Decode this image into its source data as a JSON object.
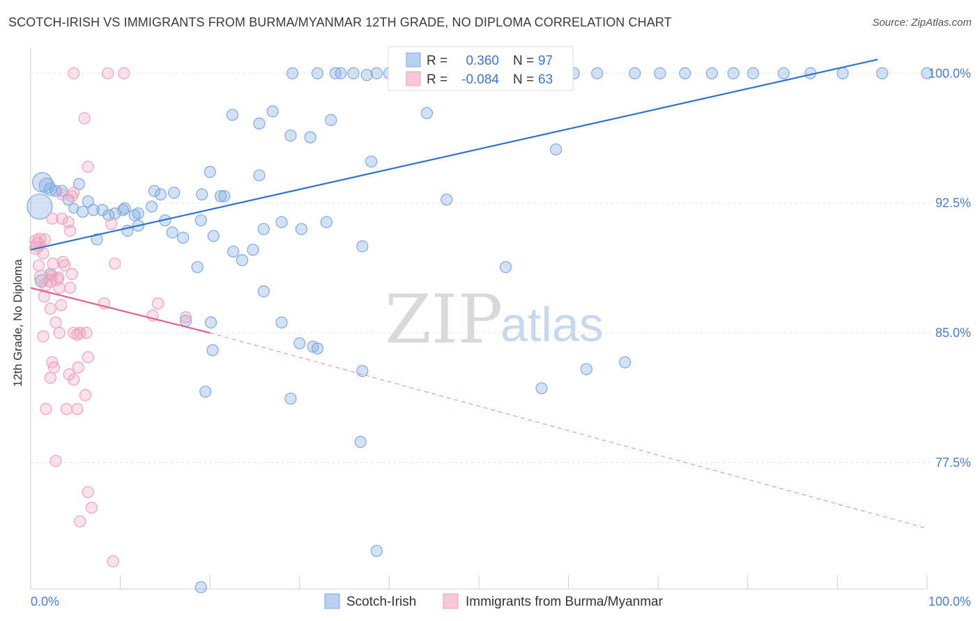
{
  "header": {
    "title": "SCOTCH-IRISH VS IMMIGRANTS FROM BURMA/MYANMAR 12TH GRADE, NO DIPLOMA CORRELATION CHART",
    "source": "Source: ZipAtlas.com"
  },
  "watermark": {
    "zip": "ZIP",
    "atlas": "atlas"
  },
  "colors": {
    "blue": "#7fa8e0",
    "blue_line": "#2f72cc",
    "pink": "#f0a0b8",
    "pink_line": "#e0628a",
    "grid": "#e2e2e2"
  },
  "chart_data": {
    "type": "scatter",
    "xlabel": "",
    "ylabel": "12th Grade, No Diploma",
    "xlim": [
      0,
      100
    ],
    "ylim": [
      70.2,
      101.5
    ],
    "x_tick_labels": [
      "0.0%",
      "100.0%"
    ],
    "y_ticks": [
      {
        "value": 77.5,
        "label": "77.5%"
      },
      {
        "value": 85.0,
        "label": "85.0%"
      },
      {
        "value": 92.5,
        "label": "92.5%"
      },
      {
        "value": 100.0,
        "label": "100.0%"
      }
    ],
    "grid": true,
    "legend_position": "bottom-center",
    "stats": {
      "r_label": "R =",
      "n_label": "N =",
      "rows": [
        {
          "series": "Scotch-Irish",
          "r": "0.360",
          "n": "97"
        },
        {
          "series": "Immigrants from Burma/Myanmar",
          "r": "-0.084",
          "n": "63"
        }
      ]
    },
    "series": [
      {
        "name": "Scotch-Irish",
        "color": "#7fa8e0",
        "trend": {
          "x": [
            0,
            94.5
          ],
          "y": [
            89.8,
            100.8
          ],
          "dashed_to": null
        },
        "points": [
          [
            1.3,
            93.7,
            14
          ],
          [
            1.0,
            92.3,
            18
          ],
          [
            1.8,
            93.5,
            11
          ],
          [
            2.2,
            93.3,
            9
          ],
          [
            2.8,
            93.2,
            8
          ],
          [
            3.5,
            93.2,
            8
          ],
          [
            4.2,
            92.7,
            8
          ],
          [
            5.4,
            93.6,
            8
          ],
          [
            6.4,
            92.6,
            8
          ],
          [
            4.8,
            92.2,
            7
          ],
          [
            5.8,
            92.0,
            8
          ],
          [
            7.0,
            92.1,
            8
          ],
          [
            8.0,
            92.1,
            8
          ],
          [
            8.7,
            91.8,
            8
          ],
          [
            9.4,
            91.9,
            8
          ],
          [
            10.3,
            92.1,
            8
          ],
          [
            10.5,
            92.2,
            8
          ],
          [
            10.8,
            90.9,
            8
          ],
          [
            14.5,
            93.0,
            8
          ],
          [
            13.8,
            93.2,
            8
          ],
          [
            12.0,
            91.9,
            8
          ],
          [
            13.5,
            92.3,
            8
          ],
          [
            7.4,
            90.4,
            8
          ],
          [
            11.6,
            91.8,
            8
          ],
          [
            12.0,
            91.2,
            8
          ],
          [
            15.0,
            91.5,
            8
          ],
          [
            15.8,
            90.8,
            8
          ],
          [
            16.0,
            93.1,
            8
          ],
          [
            19.1,
            93.0,
            8
          ],
          [
            20.4,
            90.6,
            8
          ],
          [
            20.0,
            94.3,
            8
          ],
          [
            21.2,
            92.9,
            8
          ],
          [
            19.0,
            91.5,
            8
          ],
          [
            17.0,
            90.5,
            8
          ],
          [
            21.6,
            92.9,
            8
          ],
          [
            18.6,
            88.8,
            8
          ],
          [
            22.6,
            89.7,
            8
          ],
          [
            23.6,
            89.2,
            8
          ],
          [
            24.8,
            89.8,
            8
          ],
          [
            26.0,
            91.0,
            8
          ],
          [
            25.5,
            94.1,
            8
          ],
          [
            22.5,
            97.6,
            8
          ],
          [
            25.5,
            97.1,
            8
          ],
          [
            27.0,
            97.8,
            8
          ],
          [
            28.0,
            91.4,
            8
          ],
          [
            29.0,
            96.4,
            8
          ],
          [
            31.2,
            96.3,
            8
          ],
          [
            30.2,
            91.0,
            8
          ],
          [
            33.0,
            91.4,
            8
          ],
          [
            33.5,
            97.3,
            8
          ],
          [
            34.6,
            100.0,
            8
          ],
          [
            36.0,
            100.0,
            8
          ],
          [
            38.6,
            100.0,
            8
          ],
          [
            40.0,
            100.0,
            8
          ],
          [
            42.6,
            100.0,
            8
          ],
          [
            44.2,
            100.0,
            8
          ],
          [
            45.6,
            100.0,
            8
          ],
          [
            48.0,
            100.0,
            8
          ],
          [
            49.6,
            100.0,
            8
          ],
          [
            51.0,
            100.0,
            8
          ],
          [
            52.2,
            100.0,
            8
          ],
          [
            55.0,
            100.0,
            8
          ],
          [
            58.0,
            100.0,
            8
          ],
          [
            60.6,
            100.0,
            8
          ],
          [
            63.2,
            100.0,
            8
          ],
          [
            67.4,
            100.0,
            8
          ],
          [
            70.2,
            100.0,
            8
          ],
          [
            73.0,
            100.0,
            8
          ],
          [
            76.0,
            100.0,
            8
          ],
          [
            78.4,
            100.0,
            8
          ],
          [
            80.6,
            100.0,
            8
          ],
          [
            84.0,
            100.0,
            8
          ],
          [
            87.0,
            100.0,
            8
          ],
          [
            90.6,
            100.0,
            8
          ],
          [
            95.0,
            100.0,
            8
          ],
          [
            100.0,
            100.0,
            8
          ],
          [
            29.2,
            100.0,
            8
          ],
          [
            32.0,
            100.0,
            8
          ],
          [
            37.5,
            99.9,
            8
          ],
          [
            47.8,
            99.9,
            8
          ],
          [
            38.0,
            94.9,
            8
          ],
          [
            37.0,
            90.0,
            8
          ],
          [
            34.0,
            100.0,
            8
          ],
          [
            44.2,
            97.7,
            8
          ],
          [
            46.4,
            92.7,
            8
          ],
          [
            53.0,
            88.8,
            8
          ],
          [
            58.6,
            95.6,
            8
          ],
          [
            26.0,
            87.4,
            8
          ],
          [
            20.1,
            85.6,
            8
          ],
          [
            17.3,
            85.7,
            8
          ],
          [
            28.0,
            85.6,
            8
          ],
          [
            30.0,
            84.4,
            8
          ],
          [
            32.0,
            84.1,
            8
          ],
          [
            31.5,
            84.2,
            8
          ],
          [
            20.3,
            84.0,
            8
          ],
          [
            37.0,
            82.8,
            8
          ],
          [
            62.0,
            82.9,
            8
          ],
          [
            57.0,
            81.8,
            8
          ],
          [
            66.3,
            83.3,
            8
          ],
          [
            19.5,
            81.6,
            8
          ],
          [
            29.0,
            81.2,
            8
          ],
          [
            36.8,
            78.7,
            8
          ],
          [
            38.6,
            72.4,
            8
          ],
          [
            19.0,
            70.3,
            8
          ],
          [
            2.2,
            88.4,
            8
          ],
          [
            1.2,
            88.0,
            9
          ]
        ]
      },
      {
        "name": "Immigrants from Burma/Myanmar",
        "color": "#f0a0b8",
        "trend": {
          "x": [
            0,
            20
          ],
          "y": [
            87.6,
            85.0
          ],
          "dashed_to": [
            100,
            73.7
          ]
        },
        "points": [
          [
            0.6,
            90.3,
            9
          ],
          [
            0.8,
            90.1,
            10
          ],
          [
            1.0,
            90.4,
            9
          ],
          [
            0.6,
            89.9,
            9
          ],
          [
            1.2,
            88.2,
            10
          ],
          [
            1.7,
            87.8,
            9
          ],
          [
            2.2,
            88.0,
            9
          ],
          [
            2.9,
            88.1,
            9
          ],
          [
            1.4,
            89.6,
            8
          ],
          [
            2.4,
            88.3,
            8
          ],
          [
            1.5,
            87.1,
            8
          ],
          [
            2.2,
            86.4,
            8
          ],
          [
            3.4,
            86.6,
            8
          ],
          [
            3.2,
            87.6,
            8
          ],
          [
            3.8,
            88.9,
            8
          ],
          [
            2.4,
            91.6,
            8
          ],
          [
            3.5,
            91.6,
            8
          ],
          [
            4.2,
            91.4,
            8
          ],
          [
            4.4,
            90.9,
            8
          ],
          [
            3.1,
            88.2,
            8
          ],
          [
            4.6,
            88.4,
            8
          ],
          [
            4.4,
            87.6,
            8
          ],
          [
            2.5,
            89.0,
            8
          ],
          [
            3.6,
            89.1,
            8
          ],
          [
            4.8,
            93.1,
            8
          ],
          [
            4.6,
            92.9,
            8
          ],
          [
            3.5,
            93.0,
            8
          ],
          [
            2.8,
            85.6,
            8
          ],
          [
            1.4,
            84.8,
            8
          ],
          [
            3.2,
            85.0,
            8
          ],
          [
            4.8,
            85.0,
            8
          ],
          [
            5.2,
            84.9,
            8
          ],
          [
            5.5,
            85.0,
            8
          ],
          [
            6.2,
            85.0,
            8
          ],
          [
            2.4,
            83.3,
            8
          ],
          [
            2.6,
            83.0,
            8
          ],
          [
            4.3,
            82.6,
            8
          ],
          [
            5.3,
            83.0,
            8
          ],
          [
            5.2,
            80.6,
            8
          ],
          [
            4.0,
            80.6,
            8
          ],
          [
            1.7,
            80.6,
            8
          ],
          [
            4.8,
            82.3,
            8
          ],
          [
            6.1,
            81.4,
            8
          ],
          [
            6.4,
            83.6,
            8
          ],
          [
            2.2,
            82.4,
            8
          ],
          [
            6.0,
            97.4,
            8
          ],
          [
            6.4,
            94.6,
            8
          ],
          [
            4.8,
            100.0,
            8
          ],
          [
            8.6,
            100.0,
            8
          ],
          [
            10.4,
            100.0,
            8
          ],
          [
            9.0,
            91.3,
            8
          ],
          [
            9.4,
            89.0,
            8
          ],
          [
            8.2,
            86.7,
            8
          ],
          [
            13.6,
            86.0,
            8
          ],
          [
            17.3,
            85.9,
            8
          ],
          [
            14.2,
            86.7,
            8
          ],
          [
            2.8,
            77.6,
            8
          ],
          [
            6.4,
            75.8,
            8
          ],
          [
            6.8,
            74.9,
            8
          ],
          [
            5.5,
            74.1,
            8
          ],
          [
            9.2,
            71.8,
            8
          ],
          [
            1.6,
            90.4,
            8
          ],
          [
            0.9,
            88.9,
            8
          ]
        ]
      }
    ]
  }
}
